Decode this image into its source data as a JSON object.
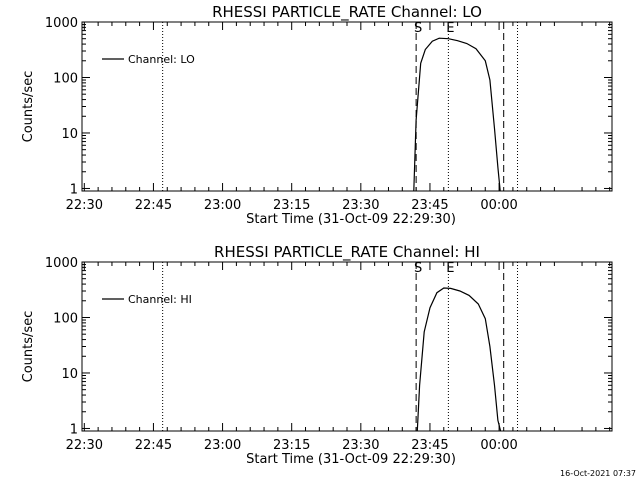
{
  "footer": {
    "timestamp": "16-Oct-2021 07:37"
  },
  "chart_data": [
    {
      "type": "line",
      "title": "RHESSI PARTICLE_RATE Channel: LO",
      "xlabel": "Start Time (31-Oct-09 22:29:30)",
      "ylabel": "Counts/sec",
      "yscale": "log",
      "ylim": [
        0.9,
        1000
      ],
      "xlim_minutes_from_start": [
        0,
        115
      ],
      "x_ticks": [
        "22:30",
        "22:45",
        "23:00",
        "23:15",
        "23:30",
        "23:45",
        "00:00"
      ],
      "y_ticks": [
        "1",
        "10",
        "100",
        "1000"
      ],
      "legend": {
        "labels": [
          "Channel: LO"
        ],
        "position": "top-left"
      },
      "series": [
        {
          "name": "Channel: LO",
          "x": [
            "23:41:30",
            "23:42:00",
            "23:43:00",
            "23:44:00",
            "23:45:30",
            "23:47:00",
            "23:49:00",
            "23:51:00",
            "23:53:00",
            "23:55:00",
            "23:57:00",
            "23:58:00",
            "23:59:00",
            "23:59:45",
            "00:00:15"
          ],
          "y": [
            0.9,
            17,
            180,
            320,
            450,
            510,
            500,
            460,
            410,
            330,
            200,
            90,
            12,
            2.4,
            0.9
          ]
        }
      ],
      "markers": [
        {
          "label": "S",
          "time": "23:42",
          "style": "dashed"
        },
        {
          "label": "E",
          "time": "23:49",
          "style": "dotted"
        },
        {
          "label": "",
          "time": "00:01",
          "style": "dashed"
        },
        {
          "label": "",
          "time": "00:04",
          "style": "dotted"
        },
        {
          "label": "",
          "time": "22:47",
          "style": "dotted"
        }
      ]
    },
    {
      "type": "line",
      "title": "RHESSI PARTICLE_RATE Channel: HI",
      "xlabel": "Start Time (31-Oct-09 22:29:30)",
      "ylabel": "Counts/sec",
      "yscale": "log",
      "ylim": [
        0.9,
        1000
      ],
      "xlim_minutes_from_start": [
        0,
        115
      ],
      "x_ticks": [
        "22:30",
        "22:45",
        "23:00",
        "23:15",
        "23:30",
        "23:45",
        "00:00"
      ],
      "y_ticks": [
        "1",
        "10",
        "100",
        "1000"
      ],
      "legend": {
        "labels": [
          "Channel: HI"
        ],
        "position": "top-left"
      },
      "series": [
        {
          "name": "Channel: HI",
          "x": [
            "23:42:15",
            "23:42:45",
            "23:43:45",
            "23:45:00",
            "23:46:30",
            "23:48:00",
            "23:49:30",
            "23:51:30",
            "23:53:30",
            "23:55:30",
            "23:57:00",
            "23:58:00",
            "23:59:00",
            "23:59:45",
            "00:00:20"
          ],
          "y": [
            0.9,
            6,
            55,
            150,
            280,
            340,
            335,
            300,
            250,
            175,
            95,
            30,
            6,
            1.4,
            0.9
          ]
        }
      ],
      "markers": [
        {
          "label": "S",
          "time": "23:42",
          "style": "dashed"
        },
        {
          "label": "E",
          "time": "23:49",
          "style": "dotted"
        },
        {
          "label": "",
          "time": "00:01",
          "style": "dashed"
        },
        {
          "label": "",
          "time": "00:04",
          "style": "dotted"
        },
        {
          "label": "",
          "time": "22:47",
          "style": "dotted"
        }
      ]
    }
  ]
}
